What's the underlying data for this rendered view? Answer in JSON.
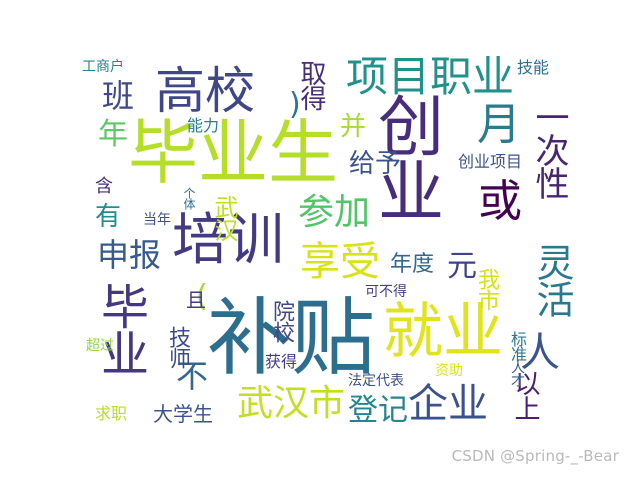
{
  "words": [
    {
      "text": "补贴",
      "color": "#2d6e8e"
    },
    {
      "text": "毕业生",
      "color": "#b5de2b"
    },
    {
      "text": "创业",
      "color": "#472d7b"
    },
    {
      "text": "就业",
      "color": "#e0e41d"
    },
    {
      "text": "培训",
      "color": "#443a83"
    },
    {
      "text": "高校",
      "color": "#3f4788"
    },
    {
      "text": "毕业",
      "color": "#453781"
    },
    {
      "text": "项目职业",
      "color": "#21918c"
    },
    {
      "text": "享受",
      "color": "#d8e219"
    },
    {
      "text": "企业",
      "color": "#3b528b"
    },
    {
      "text": "武汉市",
      "color": "#c2df23"
    },
    {
      "text": "参加",
      "color": "#52c569"
    },
    {
      "text": "一次性",
      "color": "#482475"
    },
    {
      "text": "灵活",
      "color": "#2a788e"
    },
    {
      "text": "或",
      "color": "#440154"
    },
    {
      "text": "月",
      "color": "#287c8e"
    },
    {
      "text": "申报",
      "color": "#375a8c"
    },
    {
      "text": "元",
      "color": "#404387"
    },
    {
      "text": "人",
      "color": "#3a548c"
    },
    {
      "text": "不",
      "color": "#31688e"
    },
    {
      "text": "登记",
      "color": "#25848e"
    },
    {
      "text": "以上",
      "color": "#481f71"
    },
    {
      "text": "班",
      "color": "#3e4a89"
    },
    {
      "text": "取得",
      "color": "#472d7b"
    },
    {
      "text": "给予",
      "color": "#3b528b"
    },
    {
      "text": "年度",
      "color": "#31688e"
    },
    {
      "text": "武汉",
      "color": "#bddf26"
    },
    {
      "text": "有",
      "color": "#228d8d"
    },
    {
      "text": "年",
      "color": "#5ec962"
    },
    {
      "text": "并",
      "color": "#a5db36"
    },
    {
      "text": "大学生",
      "color": "#3a548c"
    },
    {
      "text": "技师",
      "color": "#3e4989"
    },
    {
      "text": "技能",
      "color": "#2d708e"
    },
    {
      "text": "能力",
      "color": "#27808e"
    },
    {
      "text": "工商户",
      "color": "#25858e"
    },
    {
      "text": "创业项目",
      "color": "#3b528b"
    },
    {
      "text": "院校",
      "color": "#3f4788"
    },
    {
      "text": "我市",
      "color": "#d5e21a"
    },
    {
      "text": "标准",
      "color": "#2a788e"
    },
    {
      "text": "获得",
      "color": "#443b84"
    },
    {
      "text": "法定代表",
      "color": "#3d4e8a"
    },
    {
      "text": "资助",
      "color": "#dde318"
    },
    {
      "text": "人才",
      "color": "#35608d"
    },
    {
      "text": "求职",
      "color": "#b8de29"
    },
    {
      "text": "超过",
      "color": "#8bd646"
    },
    {
      "text": "当年",
      "color": "#39568c"
    },
    {
      "text": "个体",
      "color": "#2c728e"
    },
    {
      "text": "可不得",
      "color": "#433d84"
    },
    {
      "text": "含",
      "color": "#472c7a"
    },
    {
      "text": "(",
      "color": "#a2da37"
    },
    {
      "text": ")",
      "color": "#2a768e"
    },
    {
      "text": "且",
      "color": "#433d84"
    }
  ],
  "watermark": "CSDN @Spring-_-Bear"
}
